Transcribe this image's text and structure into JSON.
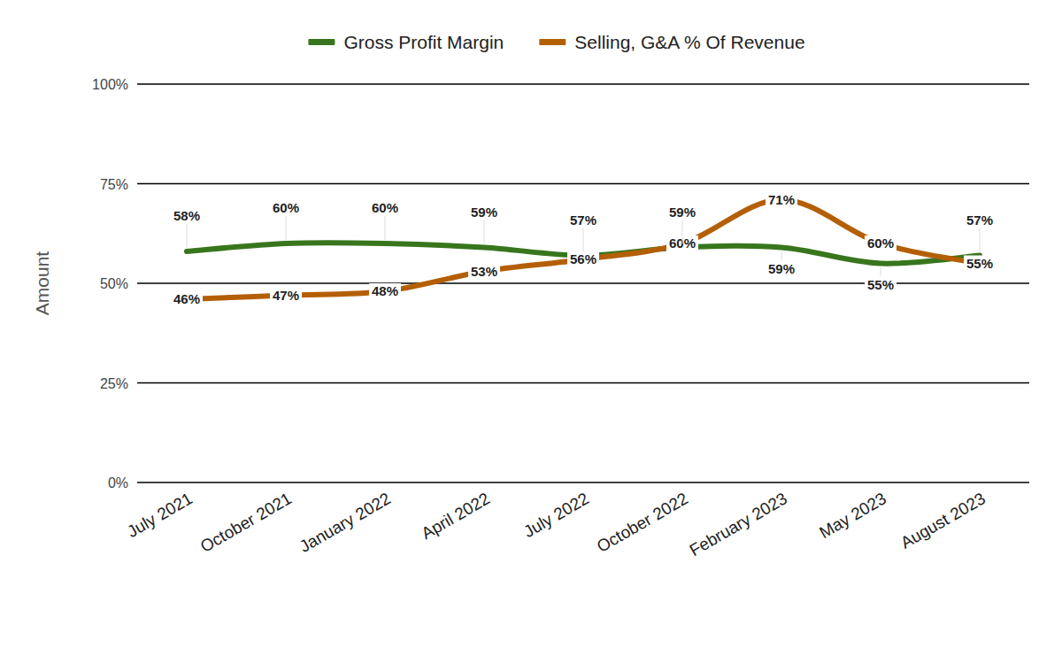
{
  "chart_data": {
    "type": "line",
    "y_label": "Amount",
    "categories": [
      "July 2021",
      "October 2021",
      "January 2022",
      "April 2022",
      "July 2022",
      "October 2022",
      "February 2023",
      "May 2023",
      "August 2023"
    ],
    "series": [
      {
        "name": "Gross Profit Margin",
        "color": "#38761d",
        "values": [
          58,
          60,
          60,
          59,
          57,
          59,
          59,
          55,
          57
        ],
        "value_labels": [
          "58%",
          "60%",
          "60%",
          "59%",
          "57%",
          "59%",
          "59%",
          "55%",
          "57%"
        ]
      },
      {
        "name": "Selling, G&A % Of Revenue",
        "color": "#b45f06",
        "values": [
          46,
          47,
          48,
          53,
          56,
          60,
          71,
          60,
          55
        ],
        "value_labels": [
          "46%",
          "47%",
          "48%",
          "53%",
          "56%",
          "60%",
          "71%",
          "60%",
          "55%"
        ]
      }
    ],
    "ylim": [
      0,
      100
    ],
    "yticks": [
      {
        "value": 0,
        "label": "0%"
      },
      {
        "value": 25,
        "label": "25%"
      },
      {
        "value": 50,
        "label": "50%"
      },
      {
        "value": 75,
        "label": "75%"
      },
      {
        "value": 100,
        "label": "100%"
      }
    ],
    "grid": true,
    "legend": "top",
    "data_labels": true
  }
}
